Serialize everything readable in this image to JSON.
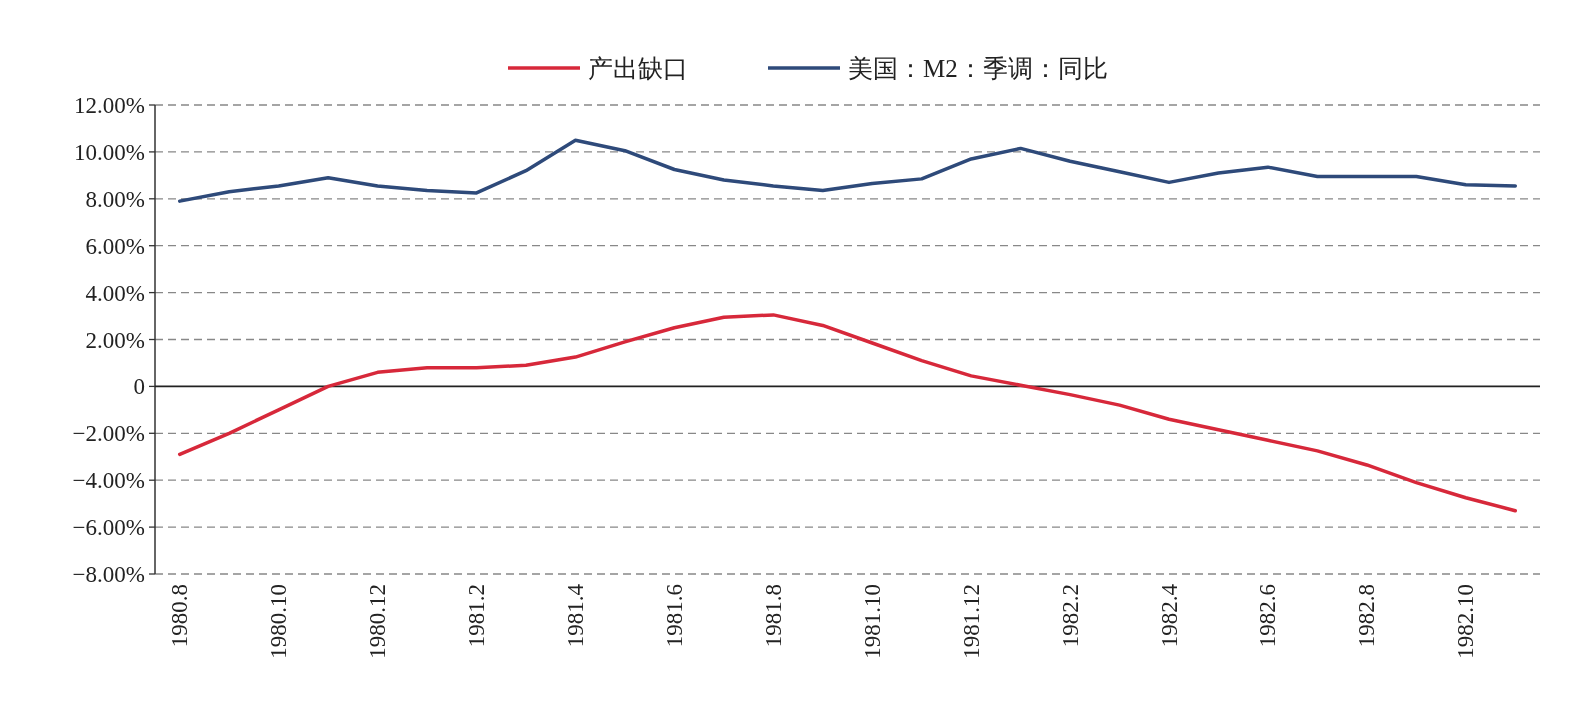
{
  "chart_data": {
    "type": "line",
    "categories": [
      "1980.8",
      null,
      "1980.10",
      null,
      "1980.12",
      null,
      "1981.2",
      null,
      "1981.4",
      null,
      "1981.6",
      null,
      "1981.8",
      null,
      "1981.10",
      null,
      "1981.12",
      null,
      "1982.2",
      null,
      "1982.4",
      null,
      "1982.6",
      null,
      "1982.8",
      null,
      "1982.10",
      null
    ],
    "series": [
      {
        "name": "产出缺口",
        "color": "#d7283a",
        "values": [
          -2.9,
          -2.0,
          -1.0,
          0.0,
          0.6,
          0.8,
          0.8,
          0.9,
          1.25,
          1.9,
          2.5,
          2.95,
          3.05,
          2.6,
          1.85,
          1.1,
          0.45,
          0.05,
          -0.35,
          -0.8,
          -1.4,
          -1.85,
          -2.3,
          -2.75,
          -3.35,
          -4.1,
          -4.75,
          -5.3
        ]
      },
      {
        "name": "美国：M2：季调：同比",
        "color": "#2e4a7a",
        "values": [
          7.9,
          8.3,
          8.55,
          8.9,
          8.55,
          8.35,
          8.25,
          9.2,
          10.5,
          10.05,
          9.25,
          8.8,
          8.55,
          8.35,
          8.65,
          8.85,
          9.7,
          10.15,
          9.6,
          9.15,
          8.7,
          9.1,
          9.35,
          8.95,
          8.95,
          8.95,
          8.6,
          8.55
        ]
      }
    ],
    "ylim": [
      -8,
      12
    ],
    "yticks": [
      {
        "value": -8,
        "label": "−8.00%"
      },
      {
        "value": -6,
        "label": "−6.00%"
      },
      {
        "value": -4,
        "label": "−4.00%"
      },
      {
        "value": -2,
        "label": "−2.00%"
      },
      0,
      {
        "value": 2,
        "label": "2.00%"
      },
      {
        "value": 4,
        "label": "4.00%"
      },
      {
        "value": 6,
        "label": "6.00%"
      },
      {
        "value": 8,
        "label": "8.00%"
      },
      {
        "value": 10,
        "label": "10.00%"
      },
      {
        "value": 12,
        "label": "12.00%"
      }
    ],
    "grid": "y",
    "legend": "top",
    "marker": "none",
    "line_style": "solid"
  }
}
